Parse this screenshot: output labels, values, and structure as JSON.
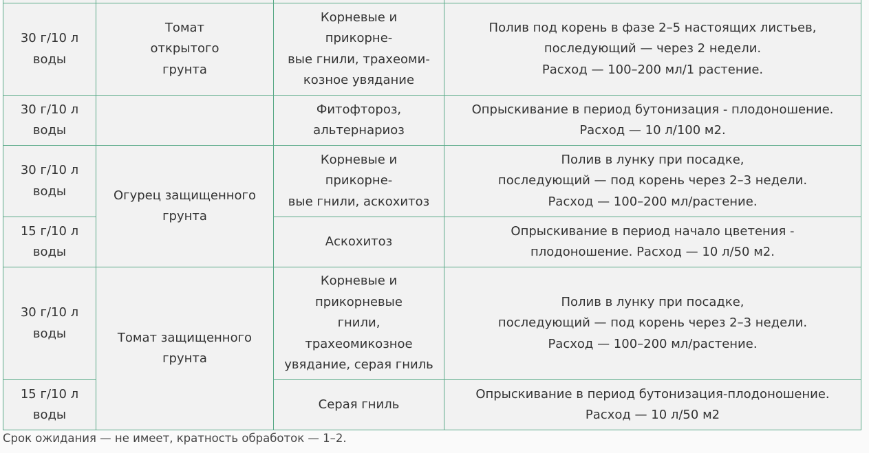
{
  "table": {
    "rows": [
      {
        "dose": "30 г/10 л\nводы",
        "crop": "Томат\nоткрытого\nгрунта",
        "disease": "Корневые и\nприкорне-\nвые гнили, трахеоми-\nкозное увядание",
        "method": "Полив под корень в фазе 2–5 настоящих листьев,\nпоследующий — через 2 недели.\nРасход — 100–200 мл/1 растение."
      },
      {
        "dose": "30 г/10 л\nводы",
        "crop": "",
        "disease": "Фитофтороз,\nальтернариоз",
        "method": "Опрыскивание в период бутонизация - плодоношение.\nРасход — 10 л/100 м2."
      },
      {
        "dose": "30 г/10 л\nводы",
        "crop": "Огурец защищенного\nгрунта",
        "disease": "Корневые и\nприкорне-\nвые гнили, аскохитоз",
        "method": "Полив в лунку при посадке,\nпоследующий — под корень через 2–3 недели.\nРасход — 100–200 мл/растение."
      },
      {
        "dose": "15 г/10 л\nводы",
        "disease": "Аскохитоз",
        "method": "Опрыскивание в период начало цветения -\nплодоношение. Расход — 10 л/50 м2."
      },
      {
        "dose": "30 г/10 л\nводы",
        "crop": "Томат защищенного\nгрунта",
        "disease": "Корневые и\nприкорневые\nгнили,\nтрахеомикозное\nувядание, серая гниль",
        "method": "Полив в лунку при посадке,\nпоследующий — под корень через 2–3 недели.\nРасход — 100–200 мл/растение."
      },
      {
        "dose": "15 г/10 л\nводы",
        "disease": "Серая гниль",
        "method": "Опрыскивание в период бутонизация-плодоношение.\nРасход — 10 л/50 м2"
      }
    ]
  },
  "footer_note": "Срок ожидания — не имеет, кратность обработок — 1–2.",
  "colors": {
    "border": "#5aaa88",
    "cell_bg": "#f2f2f2",
    "text": "#333333"
  }
}
